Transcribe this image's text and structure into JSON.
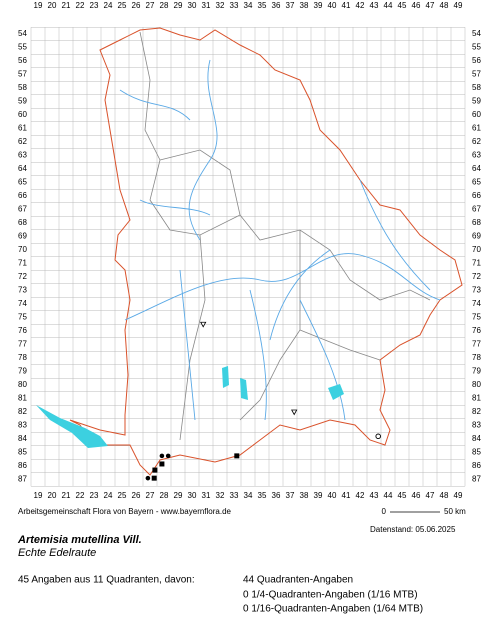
{
  "map": {
    "columns": [
      19,
      20,
      21,
      22,
      23,
      24,
      25,
      26,
      27,
      28,
      29,
      30,
      31,
      32,
      33,
      34,
      35,
      36,
      37,
      38,
      39,
      40,
      41,
      42,
      43,
      44,
      45,
      46,
      47,
      48,
      49
    ],
    "rows": [
      54,
      55,
      56,
      57,
      58,
      59,
      60,
      61,
      62,
      63,
      64,
      65,
      66,
      67,
      68,
      69,
      70,
      71,
      72,
      73,
      74,
      75,
      76,
      77,
      78,
      79,
      80,
      81,
      82,
      83,
      84,
      85,
      86,
      87
    ],
    "markers": [
      {
        "col": 27.85,
        "row": 85.25,
        "symbol": "dot"
      },
      {
        "col": 28.3,
        "row": 85.25,
        "symbol": "dot"
      },
      {
        "col": 27.85,
        "row": 85.85,
        "symbol": "square"
      },
      {
        "col": 27.35,
        "row": 86.3,
        "symbol": "square"
      },
      {
        "col": 27.3,
        "row": 86.9,
        "symbol": "square"
      },
      {
        "col": 26.85,
        "row": 86.9,
        "symbol": "dot"
      },
      {
        "col": 33.2,
        "row": 85.25,
        "symbol": "square"
      },
      {
        "col": 43.3,
        "row": 83.8,
        "symbol": "circle"
      },
      {
        "col": 30.8,
        "row": 75.5,
        "symbol": "triangle"
      },
      {
        "col": 37.3,
        "row": 82.0,
        "symbol": "triangle"
      }
    ]
  },
  "footer": {
    "credit": "Arbeitsgemeinschaft Flora von Bayern - www.bayernflora.de",
    "scale_start": "0",
    "scale_end": "50 km",
    "date": "Datenstand: 05.06.2025",
    "species": "Artemisia mutellina Vill.",
    "common_name": "Echte Edelraute",
    "summary": "45 Angaben aus 11 Quadranten, davon:",
    "counts": [
      "44 Quadranten-Angaben",
      "0 1/4-Quadranten-Angaben (1/16 MTB)",
      "0 1/16-Quadranten-Angaben (1/64 MTB)"
    ]
  }
}
